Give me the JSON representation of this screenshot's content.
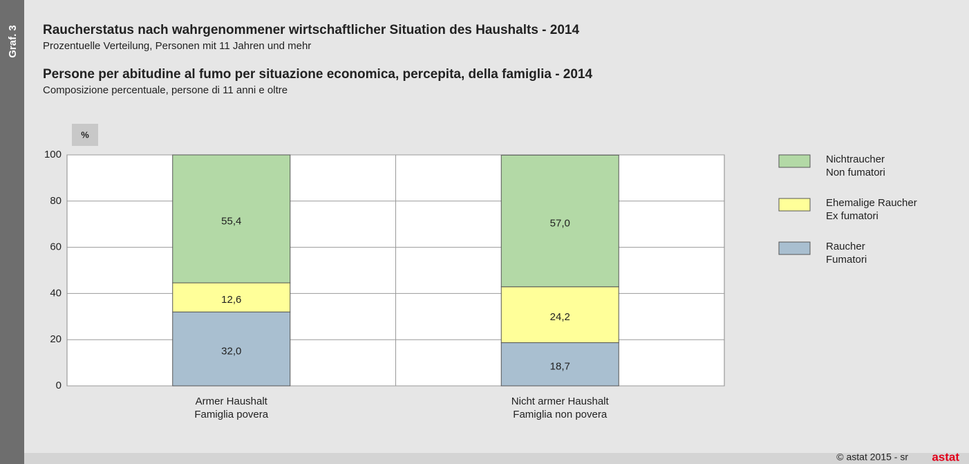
{
  "graphic_label": "Graf. 3",
  "footer": {
    "credit": "© astat 2015 - sr",
    "logo": "astat"
  },
  "chart_data": {
    "type": "stacked_bar",
    "title": "Raucherstatus nach wahrgenommener wirtschaftlicher Situation des Haushalts - 2014",
    "subtitle": "Prozentuelle Verteilung, Personen mit 11 Jahren und mehr",
    "title_it": "Persone per abitudine al fumo per situazione economica, percepita, della famiglia - 2014",
    "subtitle_it": "Composizione percentuale, persone di 11 anni e oltre",
    "y_label": "%",
    "categories": [
      [
        "Armer Haushalt",
        "Famiglia povera"
      ],
      [
        "Nicht armer Haushalt",
        "Famiglia non povera"
      ]
    ],
    "series": [
      {
        "name": [
          "Raucher",
          "Fumatori"
        ],
        "color": "#a9bfd0",
        "values": [
          32.0,
          18.7
        ],
        "value_labels": [
          "32,0",
          "18,7"
        ]
      },
      {
        "name": [
          "Ehemalige Raucher",
          "Ex fumatori"
        ],
        "color": "#ffff99",
        "values": [
          12.6,
          24.2
        ],
        "value_labels": [
          "12,6",
          "24,2"
        ]
      },
      {
        "name": [
          "Nichtraucher",
          "Non fumatori"
        ],
        "color": "#b3d9a6",
        "values": [
          55.4,
          57.0
        ],
        "value_labels": [
          "55,4",
          "57,0"
        ]
      }
    ],
    "ylim": [
      0,
      100
    ],
    "yticks": [
      0,
      20,
      40,
      60,
      80,
      100
    ],
    "grid": true,
    "legend": "right"
  }
}
